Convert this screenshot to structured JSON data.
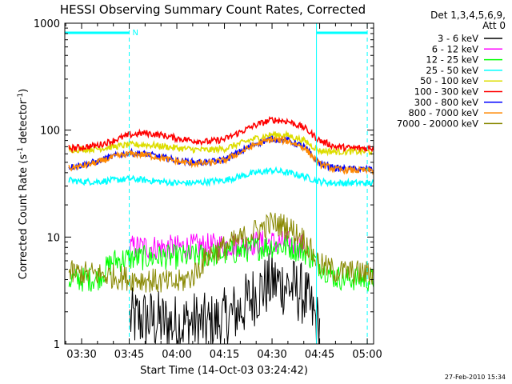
{
  "chart_data": {
    "type": "line",
    "title": "HESSI Observing Summary Count Rates, Corrected",
    "xlabel": "Start Time (14-Oct-03 03:24:42)",
    "ylabel": "Corrected Count Rate (s",
    "ylabel_sup1": "-1",
    "ylabel_mid": " detector",
    "ylabel_sup2": "-1",
    "ylabel_end": ")",
    "y_scale": "log",
    "ylim": [
      1,
      1000
    ],
    "xlim": [
      "03:24:42",
      "05:02:00"
    ],
    "x_ticks": [
      "03:30",
      "03:45",
      "04:00",
      "04:15",
      "04:30",
      "04:45",
      "05:00"
    ],
    "y_ticks": [
      "1",
      "10",
      "100",
      "1000"
    ],
    "grid": false,
    "legend_position": "right",
    "legend_header": [
      "Det 1,3,4,5,6,9,",
      "Att 0"
    ],
    "annotations": [
      {
        "text": "N",
        "x": "03:45"
      }
    ],
    "night_intervals": [
      [
        "03:24:42",
        "03:45"
      ],
      [
        "04:44",
        "05:00"
      ]
    ],
    "timestamp": "27-Feb-2010 15:34",
    "x": [
      "03:26",
      "03:30",
      "03:35",
      "03:40",
      "03:45",
      "03:50",
      "03:55",
      "04:00",
      "04:05",
      "04:10",
      "04:15",
      "04:20",
      "04:25",
      "04:30",
      "04:35",
      "04:40",
      "04:45",
      "04:50",
      "04:55",
      "05:00",
      "05:02"
    ],
    "series": [
      {
        "name": "3 - 6 keV",
        "color": "#000000",
        "values": [
          null,
          null,
          null,
          null,
          1.7,
          1.7,
          1.6,
          1.5,
          1.6,
          1.5,
          1.7,
          2.1,
          3.0,
          3.8,
          3.5,
          2.9,
          1.4,
          null,
          null,
          null,
          null
        ]
      },
      {
        "name": "6 - 12 keV",
        "color": "#ff00ff",
        "values": [
          null,
          null,
          null,
          null,
          8.0,
          8.1,
          8.0,
          8.0,
          8.2,
          8.3,
          8.4,
          8.6,
          8.8,
          8.9,
          8.7,
          8.3,
          null,
          null,
          null,
          null,
          null
        ]
      },
      {
        "name": "12 - 25 keV",
        "color": "#00ff00",
        "values": [
          4.0,
          4.0,
          4.1,
          6.0,
          6.3,
          6.4,
          6.5,
          6.5,
          6.6,
          6.8,
          7.0,
          7.4,
          7.9,
          8.3,
          8.1,
          7.4,
          5.5,
          4.2,
          4.1,
          4.0,
          4.0
        ]
      },
      {
        "name": "25 - 50 keV",
        "color": "#00ffff",
        "values": [
          34,
          33,
          33,
          34,
          35,
          34,
          33,
          32,
          32,
          33,
          34,
          37,
          40,
          42,
          40,
          37,
          33,
          32,
          32,
          32,
          32
        ]
      },
      {
        "name": "50 - 100 keV",
        "color": "#dddd00",
        "values": [
          66,
          66,
          67,
          70,
          73,
          73,
          71,
          68,
          66,
          65,
          67,
          75,
          84,
          91,
          89,
          80,
          64,
          63,
          63,
          63,
          63
        ]
      },
      {
        "name": "100 - 300 keV",
        "color": "#ff0000",
        "values": [
          68,
          69,
          72,
          80,
          90,
          94,
          90,
          84,
          80,
          78,
          82,
          96,
          112,
          125,
          121,
          106,
          80,
          70,
          68,
          68,
          68
        ]
      },
      {
        "name": "300 - 800 keV",
        "color": "#0000ff",
        "values": [
          45,
          47,
          51,
          57,
          61,
          60,
          56,
          52,
          50,
          50,
          53,
          63,
          75,
          83,
          80,
          70,
          49,
          44,
          43,
          43,
          43
        ]
      },
      {
        "name": "800 - 7000 keV",
        "color": "#ff8800",
        "values": [
          44,
          46,
          50,
          56,
          60,
          59,
          55,
          51,
          49,
          49,
          52,
          62,
          74,
          82,
          79,
          69,
          48,
          43,
          42,
          42,
          42
        ]
      },
      {
        "name": "7000 - 20000 keV",
        "color": "#888800",
        "values": [
          4.6,
          4.6,
          4.5,
          4.3,
          4.1,
          4.0,
          3.8,
          3.7,
          4.3,
          6.8,
          8.0,
          9.5,
          11.5,
          13.5,
          12.5,
          9.5,
          5.5,
          4.8,
          4.7,
          4.6,
          4.6
        ]
      }
    ]
  }
}
